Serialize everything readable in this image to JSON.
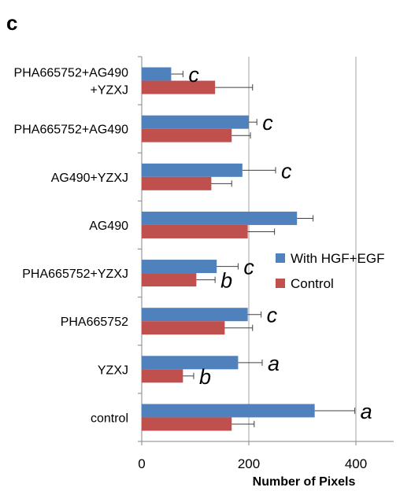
{
  "panel_label": "c",
  "chart_data": {
    "type": "bar",
    "orientation": "horizontal",
    "categories": [
      [
        "PHA665752+AG490",
        "+YZXJ"
      ],
      [
        "PHA665752+AG490"
      ],
      [
        "AG490+YZXJ"
      ],
      [
        "AG490"
      ],
      [
        "PHA665752+YZXJ"
      ],
      [
        "PHA665752"
      ],
      [
        "YZXJ"
      ],
      [
        "control"
      ]
    ],
    "series": [
      {
        "name": "With HGF+EGF",
        "color": "#4f81bd",
        "values": [
          55,
          200,
          188,
          290,
          140,
          198,
          180,
          323
        ],
        "errors": [
          22,
          15,
          62,
          30,
          40,
          25,
          45,
          75
        ],
        "significance": [
          "c",
          "c",
          "c",
          "",
          "c",
          "c",
          "a",
          "a"
        ]
      },
      {
        "name": "Control",
        "color": "#c0504d",
        "values": [
          137,
          168,
          130,
          198,
          102,
          155,
          77,
          168
        ],
        "errors": [
          70,
          35,
          38,
          50,
          35,
          52,
          20,
          42
        ],
        "significance": [
          "",
          "",
          "",
          "",
          "b",
          "",
          "b",
          ""
        ]
      }
    ],
    "xlabel": "Number of Pixels",
    "xlim": [
      0,
      475
    ],
    "xticks": [
      0,
      200,
      400
    ],
    "grid": true,
    "legend_position": "right"
  }
}
